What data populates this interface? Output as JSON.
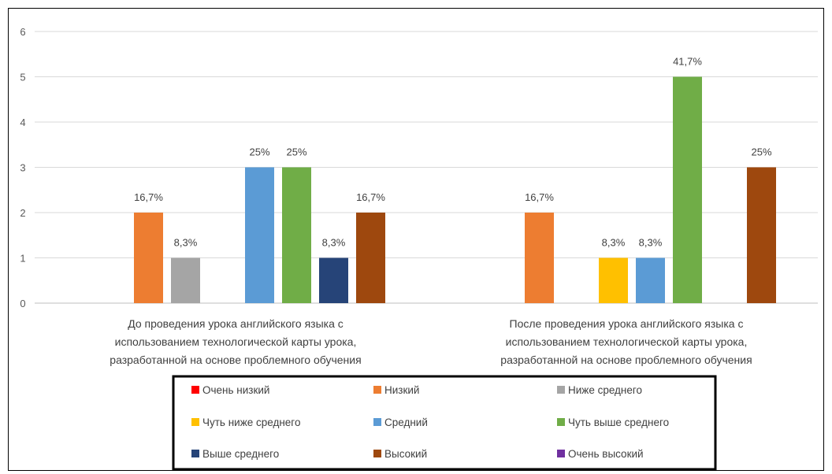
{
  "chart_data": {
    "type": "bar",
    "ylim": [
      0,
      6
    ],
    "yticks": [
      "0",
      "1",
      "2",
      "3",
      "4",
      "5",
      "6"
    ],
    "grid": true,
    "legend_position": "bottom",
    "categories": [
      [
        "До проведения урока английского языка с",
        "использованием технологической карты урока,",
        "разработанной на основе проблемного обучения"
      ],
      [
        "После проведения урока английского языка с",
        "использованием технологической карты урока,",
        "разработанной на основе проблемного обучения"
      ]
    ],
    "series": [
      {
        "name": "Очень низкий",
        "color": "#ff0000",
        "values": [
          0,
          0
        ],
        "labels": [
          "",
          ""
        ]
      },
      {
        "name": "Низкий",
        "color": "#ed7d31",
        "values": [
          2,
          2
        ],
        "labels": [
          "16,7%",
          "16,7%"
        ]
      },
      {
        "name": "Ниже среднего",
        "color": "#a5a5a5",
        "values": [
          1,
          0
        ],
        "labels": [
          "8,3%",
          ""
        ]
      },
      {
        "name": "Чуть ниже среднего",
        "color": "#ffc000",
        "values": [
          0,
          1
        ],
        "labels": [
          "",
          "8,3%"
        ]
      },
      {
        "name": "Средний",
        "color": "#5b9bd5",
        "values": [
          3,
          1
        ],
        "labels": [
          "25%",
          "8,3%"
        ]
      },
      {
        "name": "Чуть выше среднего",
        "color": "#70ad47",
        "values": [
          3,
          5
        ],
        "labels": [
          "25%",
          "41,7%"
        ]
      },
      {
        "name": "Выше среднего",
        "color": "#264478",
        "values": [
          1,
          0
        ],
        "labels": [
          "8,3%",
          ""
        ]
      },
      {
        "name": "Высокий",
        "color": "#9e480e",
        "values": [
          2,
          3
        ],
        "labels": [
          "16,7%",
          "25%"
        ]
      },
      {
        "name": "Очень высокий",
        "color": "#7030a0",
        "values": [
          0,
          0
        ],
        "labels": [
          "",
          ""
        ]
      }
    ]
  }
}
